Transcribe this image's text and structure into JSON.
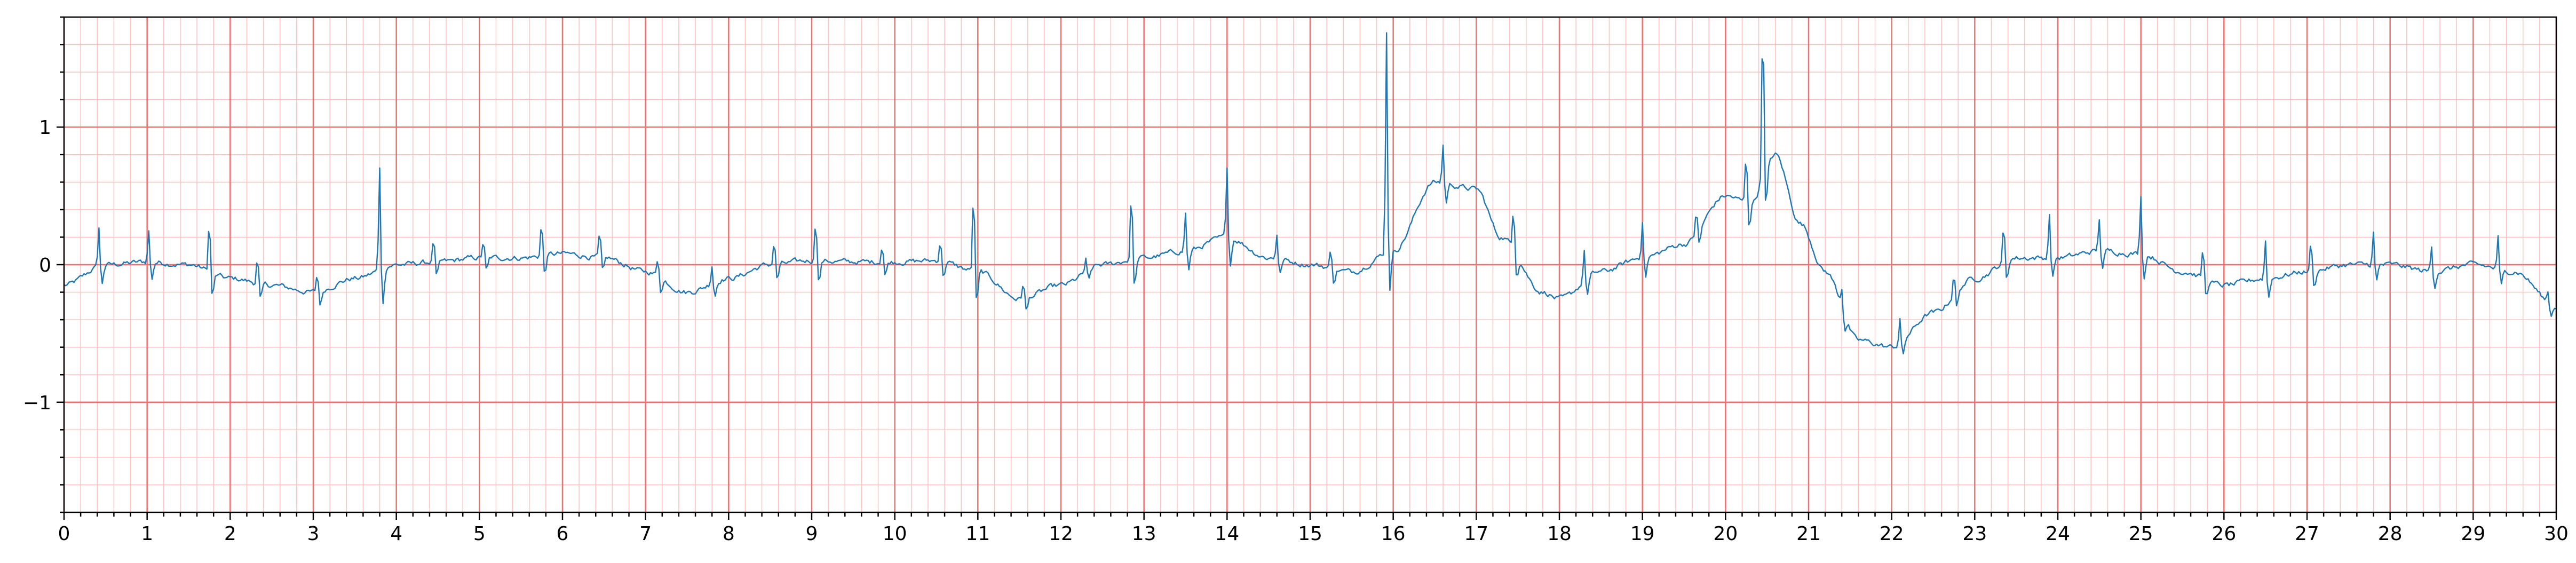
{
  "chart_data": {
    "type": "line",
    "title": "",
    "xlabel": "",
    "ylabel": "",
    "xlim": [
      0,
      30
    ],
    "ylim": [
      -1.8,
      1.8
    ],
    "x_ticks": [
      "0",
      "1",
      "2",
      "3",
      "4",
      "5",
      "6",
      "7",
      "8",
      "9",
      "10",
      "11",
      "12",
      "13",
      "14",
      "15",
      "16",
      "17",
      "18",
      "19",
      "20",
      "21",
      "22",
      "23",
      "24",
      "25",
      "26",
      "27",
      "28",
      "29",
      "30"
    ],
    "y_ticks": [
      {
        "value": 1,
        "label": "1"
      },
      {
        "value": 0,
        "label": "0"
      },
      {
        "value": -1,
        "label": "−1"
      }
    ],
    "grid": true,
    "grid_major_x": 1,
    "grid_minor_x": 0.2,
    "grid_major_y": 1,
    "grid_minor_y": 0.2,
    "grid_major_color": "#f07070",
    "grid_minor_color": "#ffc0c0",
    "line_color": "#1f77b4",
    "sampling_interval_s": 0.02,
    "baseline_knots": [
      [
        0,
        -0.15
      ],
      [
        0.5,
        0.0
      ],
      [
        1.0,
        0.02
      ],
      [
        1.5,
        0.0
      ],
      [
        2.0,
        -0.1
      ],
      [
        2.5,
        -0.15
      ],
      [
        3.0,
        -0.2
      ],
      [
        3.5,
        -0.1
      ],
      [
        4.0,
        0.0
      ],
      [
        4.5,
        0.02
      ],
      [
        5.0,
        0.05
      ],
      [
        5.5,
        0.05
      ],
      [
        6.0,
        0.08
      ],
      [
        6.5,
        0.05
      ],
      [
        7.0,
        -0.05
      ],
      [
        7.5,
        -0.2
      ],
      [
        8.0,
        -0.1
      ],
      [
        8.5,
        0.0
      ],
      [
        9.0,
        0.03
      ],
      [
        9.5,
        0.02
      ],
      [
        10.0,
        0.02
      ],
      [
        10.5,
        0.03
      ],
      [
        11.0,
        -0.05
      ],
      [
        11.5,
        -0.25
      ],
      [
        12.0,
        -0.15
      ],
      [
        12.5,
        0.0
      ],
      [
        13.0,
        0.05
      ],
      [
        13.5,
        0.1
      ],
      [
        14.0,
        0.2
      ],
      [
        14.5,
        0.05
      ],
      [
        15.0,
        0.0
      ],
      [
        15.5,
        -0.05
      ],
      [
        16.0,
        0.1
      ],
      [
        16.5,
        0.6
      ],
      [
        17.0,
        0.55
      ],
      [
        17.3,
        0.2
      ],
      [
        17.8,
        -0.2
      ],
      [
        18.0,
        -0.25
      ],
      [
        18.5,
        -0.05
      ],
      [
        19.0,
        0.05
      ],
      [
        19.5,
        0.15
      ],
      [
        20.0,
        0.5
      ],
      [
        20.3,
        0.45
      ],
      [
        20.6,
        0.8
      ],
      [
        20.9,
        0.3
      ],
      [
        21.2,
        -0.05
      ],
      [
        21.6,
        -0.55
      ],
      [
        22.0,
        -0.6
      ],
      [
        22.5,
        -0.35
      ],
      [
        23.0,
        -0.1
      ],
      [
        23.5,
        0.05
      ],
      [
        24.0,
        0.05
      ],
      [
        24.5,
        0.1
      ],
      [
        25.0,
        0.08
      ],
      [
        25.5,
        -0.05
      ],
      [
        26.0,
        -0.15
      ],
      [
        26.5,
        -0.1
      ],
      [
        27.0,
        -0.05
      ],
      [
        27.5,
        0.0
      ],
      [
        28.0,
        0.0
      ],
      [
        28.5,
        -0.05
      ],
      [
        29.0,
        0.0
      ],
      [
        29.5,
        -0.05
      ],
      [
        30.0,
        -0.3
      ]
    ],
    "beats": [
      [
        0.42,
        0.3
      ],
      [
        1.02,
        0.25
      ],
      [
        1.75,
        0.42
      ],
      [
        2.33,
        0.22
      ],
      [
        3.05,
        0.15
      ],
      [
        3.8,
        0.78
      ],
      [
        4.45,
        0.2
      ],
      [
        5.05,
        0.15
      ],
      [
        5.75,
        0.28
      ],
      [
        6.45,
        0.2
      ],
      [
        7.15,
        0.15
      ],
      [
        7.8,
        0.15
      ],
      [
        8.55,
        0.2
      ],
      [
        9.05,
        0.35
      ],
      [
        9.85,
        0.15
      ],
      [
        10.55,
        0.18
      ],
      [
        10.95,
        0.65
      ],
      [
        11.55,
        0.15
      ],
      [
        12.3,
        0.1
      ],
      [
        12.85,
        0.55
      ],
      [
        13.5,
        0.3
      ],
      [
        14.0,
        0.55
      ],
      [
        14.6,
        0.2
      ],
      [
        15.25,
        0.15
      ],
      [
        15.92,
        1.65
      ],
      [
        16.6,
        0.3
      ],
      [
        17.45,
        0.35
      ],
      [
        18.3,
        0.25
      ],
      [
        19.0,
        0.3
      ],
      [
        19.65,
        0.2
      ],
      [
        20.25,
        0.4
      ],
      [
        20.45,
        1.3
      ],
      [
        21.4,
        0.15
      ],
      [
        22.1,
        0.2
      ],
      [
        22.75,
        0.2
      ],
      [
        23.35,
        0.3
      ],
      [
        23.9,
        0.35
      ],
      [
        24.5,
        0.25
      ],
      [
        25.0,
        0.45
      ],
      [
        25.75,
        0.25
      ],
      [
        26.5,
        0.3
      ],
      [
        27.05,
        0.25
      ],
      [
        27.8,
        0.25
      ],
      [
        28.5,
        0.2
      ],
      [
        29.3,
        0.25
      ],
      [
        29.9,
        0.1
      ]
    ],
    "s_wave_depth": 0.28,
    "noise_level": 0.04,
    "y_min_observed": -0.82,
    "y_max_observed": 1.76
  }
}
